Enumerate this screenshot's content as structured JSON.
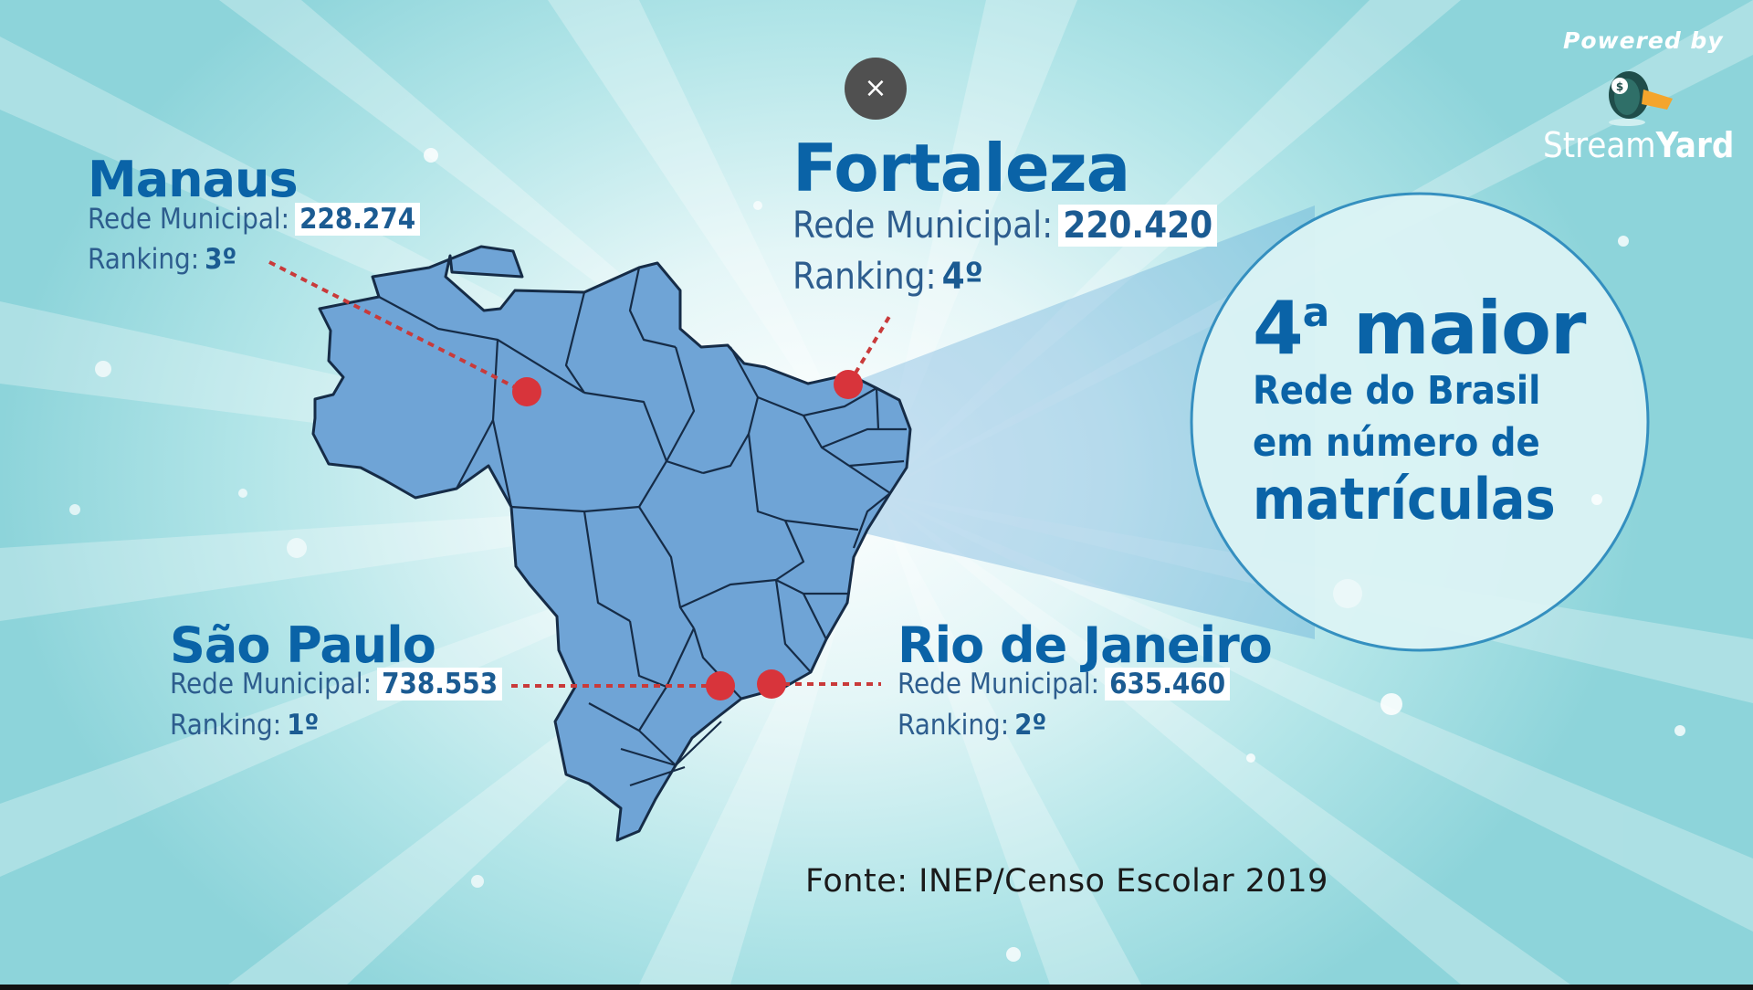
{
  "overlay": {
    "close_icon": "close-icon",
    "close_glyph": "×",
    "powered_by": "Powered by",
    "brand_part1": "Stream",
    "brand_part2": "Yard",
    "logo_icon": "duck-mascot-icon"
  },
  "cities": {
    "manaus": {
      "name": "Manaus",
      "network_label": "Rede Municipal:",
      "network_value": "228.274",
      "ranking_label": "Ranking:",
      "ranking_value": "3º"
    },
    "fortaleza": {
      "name": "Fortaleza",
      "network_label": "Rede Municipal:",
      "network_value": "220.420",
      "ranking_label": "Ranking:",
      "ranking_value": "4º"
    },
    "sao_paulo": {
      "name": "São Paulo",
      "network_label": "Rede Municipal:",
      "network_value": "738.553",
      "ranking_label": "Ranking:",
      "ranking_value": "1º"
    },
    "rio": {
      "name": "Rio de Janeiro",
      "network_label": "Rede Municipal:",
      "network_value": "635.460",
      "ranking_label": "Ranking:",
      "ranking_value": "2º"
    }
  },
  "highlight": {
    "rank_number": "4",
    "rank_suffix": "a",
    "rank_word": "maior",
    "line1": "Rede do Brasil",
    "line2": "em número de",
    "line3": "matrículas"
  },
  "source": "Fonte: INEP/Censo Escolar 2019",
  "colors": {
    "title_blue": "#0a63a7",
    "map_fill": "#6fa4d6",
    "marker_red": "#d8343b"
  }
}
